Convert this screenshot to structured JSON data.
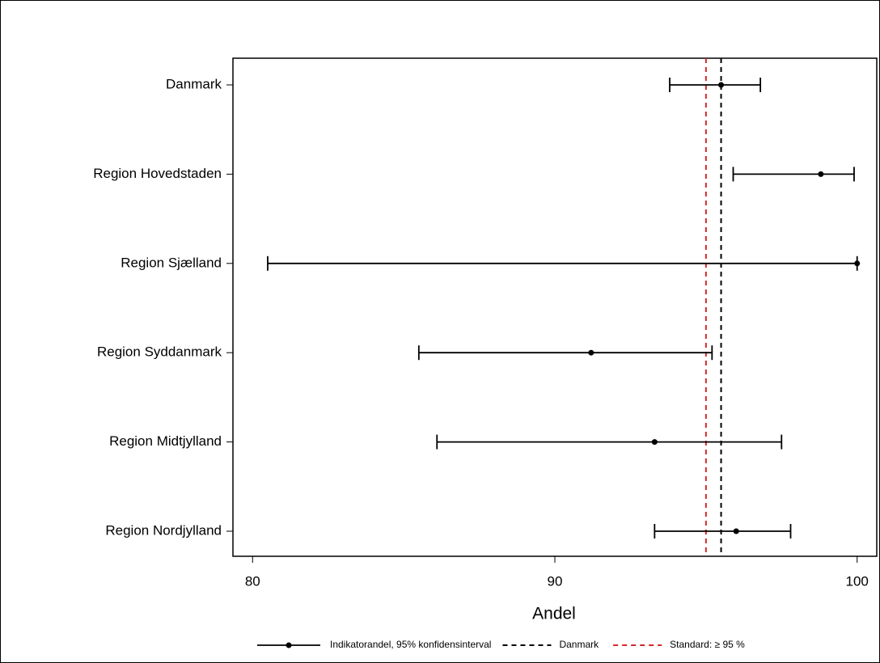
{
  "chart_data": {
    "type": "errorbar",
    "xlabel": "Andel",
    "categories": [
      "Danmark",
      "Region Hovedstaden",
      "Region Sjælland",
      "Region Syddanmark",
      "Region Midtjylland",
      "Region Nordjylland"
    ],
    "series": [
      {
        "name": "Indikatorandel, 95% konfidensinterval",
        "color": "#000000",
        "values": [
          95.5,
          98.8,
          100,
          91.2,
          93.3,
          96.0
        ],
        "lower": [
          93.8,
          95.9,
          80.5,
          85.5,
          86.1,
          93.3
        ],
        "upper": [
          96.8,
          99.9,
          100,
          95.2,
          97.5,
          97.8
        ]
      }
    ],
    "reference_lines": [
      {
        "name": "Danmark",
        "value": 95.5,
        "color": "#000000"
      },
      {
        "name": "Standard: ≥ 95 %",
        "value": 95,
        "color": "#d62728"
      }
    ],
    "xlim": [
      79.35,
      100.65
    ],
    "xticks": [
      80,
      90,
      100
    ]
  }
}
